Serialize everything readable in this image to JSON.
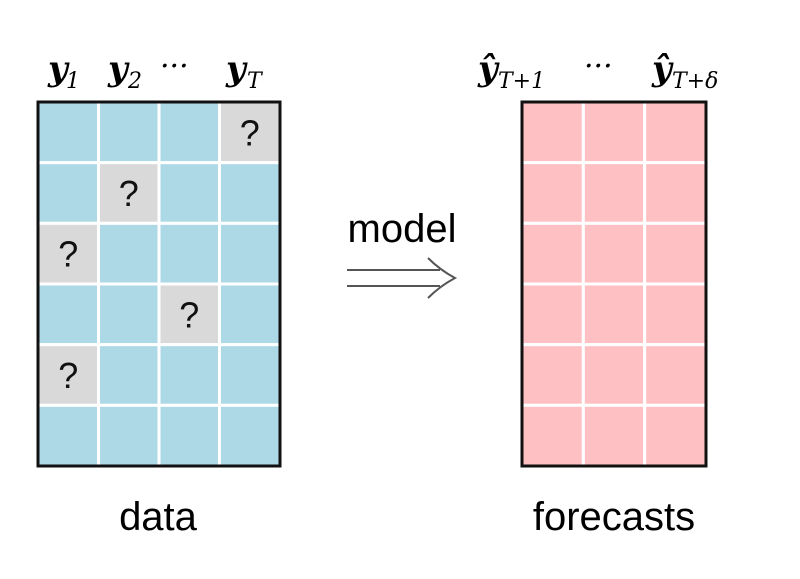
{
  "data_panel": {
    "header": {
      "y1": {
        "base": "y",
        "sub": "1"
      },
      "y2": {
        "base": "y",
        "sub": "2"
      },
      "dots": "···",
      "yT": {
        "base": "y",
        "sub": "T"
      }
    },
    "label": "data",
    "rows": 6,
    "cols": 4,
    "cell_color": "#add8e6",
    "missing_color": "#d9d9d9",
    "missing_symbol": "?",
    "missing_cells": [
      [
        0,
        3
      ],
      [
        1,
        1
      ],
      [
        2,
        0
      ],
      [
        3,
        2
      ],
      [
        4,
        0
      ]
    ]
  },
  "arrow": {
    "label": "model",
    "icon": "double-arrow-right-icon"
  },
  "forecast_panel": {
    "header": {
      "first": {
        "base": "ŷ",
        "sub": "T+1"
      },
      "dots": "···",
      "last": {
        "base": "ŷ",
        "sub": "T+δ"
      }
    },
    "label": "forecasts",
    "rows": 6,
    "cols": 3,
    "cell_color": "#ffc0c4"
  }
}
